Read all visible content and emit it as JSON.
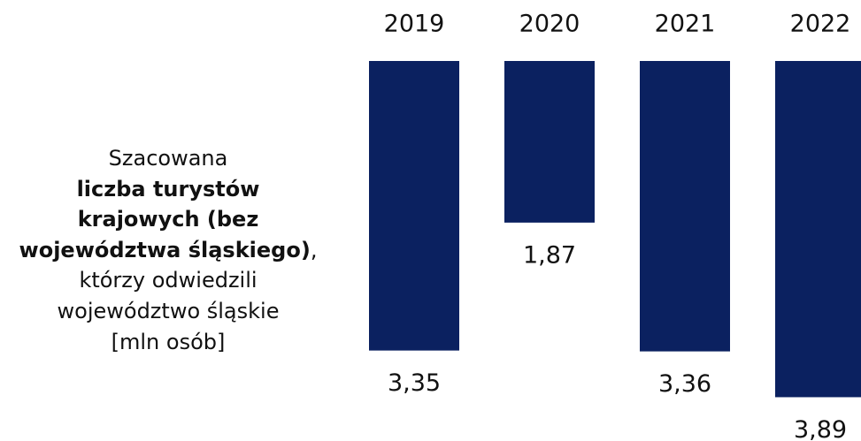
{
  "chart_data": {
    "type": "bar",
    "description": [
      "Szacowana",
      "liczba turystów",
      "krajowych (bez",
      "województwa śląskiego)",
      ",",
      "którzy odwiedzili",
      "województwo śląskie",
      "[mln osób]"
    ],
    "categories": [
      "2019",
      "2020",
      "2021",
      "2022"
    ],
    "values": [
      3.35,
      1.87,
      3.36,
      3.89
    ],
    "value_labels": [
      "3,35",
      "1,87",
      "3,36",
      "3,89"
    ],
    "color": "#0b2160"
  }
}
